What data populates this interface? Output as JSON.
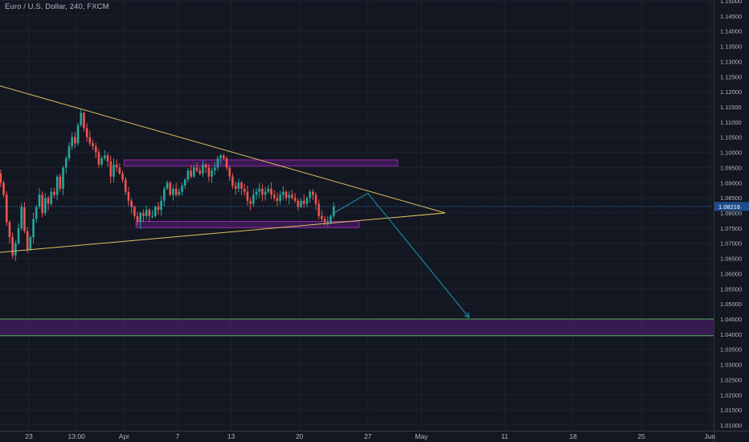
{
  "header": {
    "symbol_title": "Euro / U.S. Dollar, 240, FXCM"
  },
  "price_axis": {
    "ticks": [
      "1.01000",
      "1.01500",
      "1.02000",
      "1.02500",
      "1.03000",
      "1.03500",
      "1.04000",
      "1.04500",
      "1.05000",
      "1.05500",
      "1.06000",
      "1.06500",
      "1.07000",
      "1.07500",
      "1.08000",
      "1.08500",
      "1.09000",
      "1.09500",
      "1.10000",
      "1.10500",
      "1.11000",
      "1.11500",
      "1.12000",
      "1.12500",
      "1.13000",
      "1.13500",
      "1.14000",
      "1.14500",
      "1.15000"
    ],
    "current_price_label": "1.08216",
    "current_price": 1.08216
  },
  "time_axis": {
    "labels": [
      {
        "text": "23",
        "bar": 10
      },
      {
        "text": "13:00",
        "bar": 26
      },
      {
        "text": "Apr",
        "bar": 42
      },
      {
        "text": "7",
        "bar": 60
      },
      {
        "text": "13",
        "bar": 78
      },
      {
        "text": "20",
        "bar": 101
      },
      {
        "text": "27",
        "bar": 124
      },
      {
        "text": "May",
        "bar": 142
      },
      {
        "text": "11",
        "bar": 170
      },
      {
        "text": "18",
        "bar": 193
      },
      {
        "text": "25",
        "bar": 216
      },
      {
        "text": "Jun",
        "bar": 239
      }
    ]
  },
  "colors": {
    "background": "#131722",
    "grid": "#1e222d",
    "up_candle": "#26a69a",
    "down_candle": "#ef5350",
    "trendline": "#e0c060",
    "zone_fill": "rgba(123, 31, 162, 0.35)",
    "zone_border": "#9c27b0",
    "target_line": "#4caf50",
    "projection_arrow": "#2196b8",
    "price_label_bg": "#1e4d8c"
  },
  "chart_data": {
    "type": "candlestick",
    "symbol": "EURUSD",
    "timeframe": "240",
    "source": "FXCM",
    "y_scale": "linear",
    "ylim": [
      1.0075,
      1.15
    ],
    "grid": true,
    "closes": [
      1.09,
      1.086,
      1.077,
      1.072,
      1.066,
      1.07,
      1.075,
      1.082,
      1.074,
      1.068,
      1.072,
      1.078,
      1.082,
      1.086,
      1.08,
      1.085,
      1.083,
      1.087,
      1.086,
      1.092,
      1.088,
      1.095,
      1.098,
      1.102,
      1.105,
      1.103,
      1.109,
      1.113,
      1.108,
      1.105,
      1.103,
      1.102,
      1.1,
      1.096,
      1.098,
      1.099,
      1.097,
      1.092,
      1.096,
      1.095,
      1.093,
      1.091,
      1.087,
      1.084,
      1.082,
      1.079,
      1.077,
      1.08,
      1.079,
      1.081,
      1.079,
      1.079,
      1.082,
      1.081,
      1.084,
      1.088,
      1.09,
      1.086,
      1.088,
      1.086,
      1.087,
      1.089,
      1.091,
      1.094,
      1.092,
      1.095,
      1.094,
      1.093,
      1.096,
      1.095,
      1.092,
      1.094,
      1.095,
      1.098,
      1.099,
      1.098,
      1.095,
      1.092,
      1.089,
      1.088,
      1.09,
      1.088,
      1.087,
      1.084,
      1.083,
      1.086,
      1.087,
      1.088,
      1.086,
      1.087,
      1.088,
      1.086,
      1.085,
      1.084,
      1.086,
      1.087,
      1.085,
      1.086,
      1.085,
      1.084,
      1.082,
      1.084,
      1.083,
      1.085,
      1.087,
      1.086,
      1.083,
      1.079,
      1.078,
      1.077,
      1.077,
      1.079,
      1.0822
    ],
    "trendlines": [
      {
        "from": {
          "bar": 0,
          "price": 1.122
        },
        "to": {
          "bar": 150,
          "price": 1.08
        }
      },
      {
        "from": {
          "bar": 0,
          "price": 1.067
        },
        "to": {
          "bar": 150,
          "price": 1.08
        }
      }
    ],
    "zones": [
      {
        "from_bar": 42,
        "to_bar": 134,
        "top": 1.0975,
        "bottom": 1.0955
      },
      {
        "from_bar": 46,
        "to_bar": 121,
        "top": 1.0772,
        "bottom": 1.0752
      },
      {
        "from_bar": 0,
        "to_bar": 250,
        "top": 1.045,
        "bottom": 1.0395
      }
    ],
    "projection_path": [
      {
        "bar": 112,
        "price": 1.0797
      },
      {
        "bar": 124,
        "price": 1.0865
      },
      {
        "bar": 158,
        "price": 1.0455
      }
    ]
  }
}
